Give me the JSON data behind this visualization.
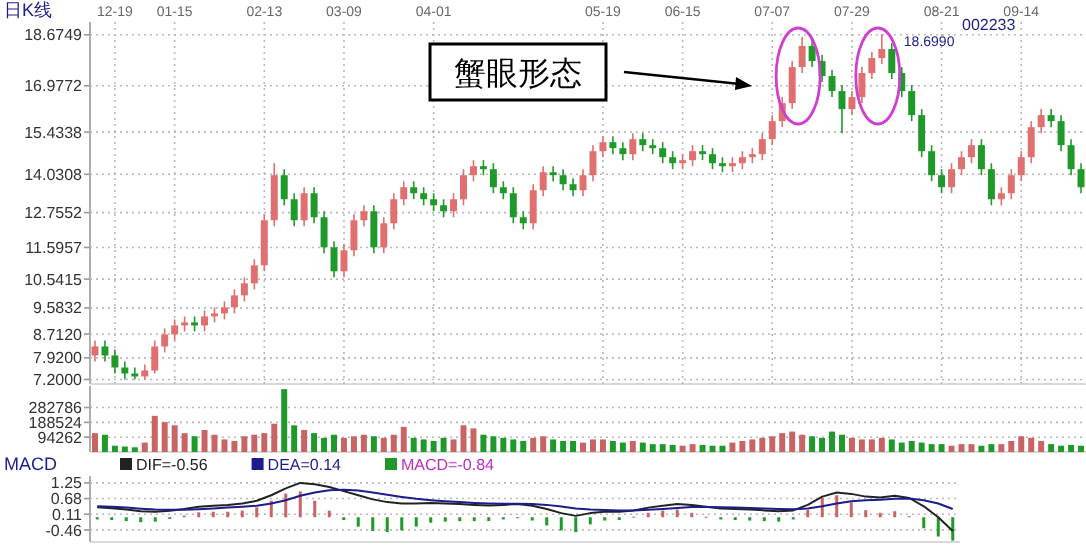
{
  "chart_data": [
    {
      "type": "candlestick",
      "title": "日K线",
      "subtitle": "002233",
      "annotations": [
        "蟹眼形态",
        "18.6990"
      ],
      "grid": true,
      "categories": [
        null,
        null,
        "12-19",
        null,
        null,
        null,
        null,
        null,
        "01-15",
        null,
        null,
        null,
        null,
        null,
        null,
        null,
        null,
        "02-13",
        null,
        null,
        null,
        null,
        null,
        null,
        null,
        "03-09",
        null,
        null,
        null,
        null,
        null,
        null,
        null,
        null,
        "04-01",
        null,
        null,
        null,
        null,
        null,
        null,
        null,
        null,
        null,
        null,
        null,
        null,
        null,
        null,
        null,
        null,
        "05-19",
        null,
        null,
        null,
        null,
        null,
        null,
        null,
        "06-15",
        null,
        null,
        null,
        null,
        null,
        null,
        null,
        null,
        "07-07",
        null,
        null,
        null,
        null,
        null,
        null,
        null,
        "07-29",
        null,
        null,
        null,
        null,
        null,
        null,
        null,
        null,
        "08-21",
        null,
        null,
        null,
        null,
        null,
        null,
        null,
        "09-14",
        null,
        null,
        null,
        null,
        null,
        null
      ],
      "ylim": [
        7.05,
        19.1
      ],
      "yticks": [
        {
          "value": 7.2,
          "label": "7.2000"
        },
        {
          "value": 7.92,
          "label": "7.9200"
        },
        {
          "value": 8.712,
          "label": "8.7120"
        },
        9.5832,
        10.5415,
        11.5957,
        12.7552,
        14.0308,
        15.4338,
        16.9772,
        18.6749
      ],
      "ohlc": [
        [
          8.0,
          8.5,
          7.8,
          8.3
        ],
        [
          8.3,
          8.5,
          7.8,
          8.0
        ],
        [
          8.0,
          8.2,
          7.4,
          7.6
        ],
        [
          7.6,
          7.8,
          7.2,
          7.4
        ],
        [
          7.4,
          7.6,
          7.2,
          7.3
        ],
        [
          7.3,
          7.7,
          7.2,
          7.5
        ],
        [
          7.5,
          8.5,
          7.4,
          8.3
        ],
        [
          8.3,
          8.9,
          8.1,
          8.7
        ],
        [
          8.7,
          9.2,
          8.5,
          9.0
        ],
        [
          9.0,
          9.3,
          8.8,
          9.1
        ],
        [
          9.1,
          9.3,
          8.8,
          9.0
        ],
        [
          9.0,
          9.5,
          8.8,
          9.3
        ],
        [
          9.3,
          9.6,
          9.1,
          9.4
        ],
        [
          9.4,
          9.8,
          9.2,
          9.6
        ],
        [
          9.6,
          10.2,
          9.4,
          10.0
        ],
        [
          10.0,
          10.6,
          9.8,
          10.4
        ],
        [
          10.4,
          11.2,
          10.2,
          11.0
        ],
        [
          11.0,
          12.7,
          10.8,
          12.5
        ],
        [
          12.5,
          14.4,
          12.3,
          14.0
        ],
        [
          14.0,
          14.2,
          13.0,
          13.2
        ],
        [
          13.2,
          13.4,
          12.3,
          12.5
        ],
        [
          12.5,
          13.6,
          12.3,
          13.4
        ],
        [
          13.4,
          13.6,
          12.4,
          12.6
        ],
        [
          12.6,
          12.8,
          11.4,
          11.6
        ],
        [
          11.6,
          11.8,
          10.6,
          10.8
        ],
        [
          10.8,
          11.7,
          10.6,
          11.5
        ],
        [
          11.5,
          12.7,
          11.3,
          12.5
        ],
        [
          12.5,
          13.0,
          12.3,
          12.8
        ],
        [
          12.8,
          13.0,
          11.4,
          11.6
        ],
        [
          11.6,
          12.6,
          11.4,
          12.4
        ],
        [
          12.4,
          13.4,
          12.2,
          13.2
        ],
        [
          13.2,
          13.8,
          13.0,
          13.6
        ],
        [
          13.6,
          13.8,
          13.2,
          13.4
        ],
        [
          13.4,
          13.6,
          13.0,
          13.2
        ],
        [
          13.2,
          13.4,
          12.8,
          13.0
        ],
        [
          13.0,
          13.2,
          12.6,
          12.8
        ],
        [
          12.8,
          13.4,
          12.6,
          13.2
        ],
        [
          13.2,
          14.2,
          13.0,
          14.0
        ],
        [
          14.0,
          14.5,
          13.8,
          14.3
        ],
        [
          14.3,
          14.5,
          14.0,
          14.2
        ],
        [
          14.2,
          14.4,
          13.4,
          13.6
        ],
        [
          13.6,
          13.8,
          13.2,
          13.4
        ],
        [
          13.4,
          13.6,
          12.4,
          12.6
        ],
        [
          12.6,
          12.8,
          12.2,
          12.4
        ],
        [
          12.4,
          13.7,
          12.2,
          13.5
        ],
        [
          13.5,
          14.3,
          13.3,
          14.1
        ],
        [
          14.1,
          14.3,
          13.8,
          14.0
        ],
        [
          14.0,
          14.2,
          13.5,
          13.7
        ],
        [
          13.7,
          13.9,
          13.3,
          13.5
        ],
        [
          13.5,
          14.2,
          13.3,
          14.0
        ],
        [
          14.0,
          15.0,
          13.8,
          14.8
        ],
        [
          14.8,
          15.3,
          14.6,
          15.1
        ],
        [
          15.1,
          15.3,
          14.7,
          14.9
        ],
        [
          14.9,
          15.1,
          14.5,
          14.7
        ],
        [
          14.7,
          15.4,
          14.5,
          15.2
        ],
        [
          15.2,
          15.4,
          14.8,
          15.0
        ],
        [
          15.0,
          15.2,
          14.7,
          14.9
        ],
        [
          14.9,
          15.1,
          14.4,
          14.6
        ],
        [
          14.6,
          14.8,
          14.2,
          14.4
        ],
        [
          14.4,
          14.7,
          14.2,
          14.5
        ],
        [
          14.5,
          15.0,
          14.3,
          14.8
        ],
        [
          14.8,
          15.0,
          14.5,
          14.7
        ],
        [
          14.7,
          14.9,
          14.2,
          14.4
        ],
        [
          14.4,
          14.6,
          14.1,
          14.3
        ],
        [
          14.3,
          14.6,
          14.1,
          14.4
        ],
        [
          14.4,
          14.8,
          14.2,
          14.6
        ],
        [
          14.6,
          14.9,
          14.4,
          14.7
        ],
        [
          14.7,
          15.4,
          14.5,
          15.2
        ],
        [
          15.2,
          16.0,
          15.0,
          15.8
        ],
        [
          15.8,
          16.6,
          15.6,
          16.4
        ],
        [
          16.4,
          17.8,
          16.2,
          17.6
        ],
        [
          17.6,
          18.6,
          17.4,
          18.3
        ],
        [
          18.3,
          18.5,
          17.6,
          17.8
        ],
        [
          17.8,
          18.0,
          17.1,
          17.3
        ],
        [
          17.3,
          17.5,
          16.6,
          16.8
        ],
        [
          16.8,
          17.0,
          15.4,
          16.2
        ],
        [
          16.2,
          16.8,
          16.0,
          16.6
        ],
        [
          16.6,
          17.6,
          16.4,
          17.4
        ],
        [
          17.4,
          18.1,
          17.2,
          17.9
        ],
        [
          17.9,
          18.699,
          17.7,
          18.2
        ],
        [
          18.2,
          18.4,
          17.2,
          17.4
        ],
        [
          17.4,
          17.6,
          16.6,
          16.8
        ],
        [
          16.8,
          17.0,
          15.8,
          16.0
        ],
        [
          16.0,
          16.2,
          14.6,
          14.8
        ],
        [
          14.8,
          15.0,
          13.8,
          14.0
        ],
        [
          14.0,
          14.2,
          13.4,
          13.6
        ],
        [
          13.6,
          14.4,
          13.4,
          14.2
        ],
        [
          14.2,
          14.8,
          14.0,
          14.6
        ],
        [
          14.6,
          15.2,
          14.4,
          15.0
        ],
        [
          15.0,
          15.2,
          14.0,
          14.2
        ],
        [
          14.2,
          14.4,
          13.0,
          13.2
        ],
        [
          13.2,
          13.6,
          13.0,
          13.4
        ],
        [
          13.4,
          14.2,
          13.2,
          14.0
        ],
        [
          14.0,
          14.8,
          13.8,
          14.6
        ],
        [
          14.6,
          15.8,
          14.4,
          15.6
        ],
        [
          15.6,
          16.2,
          15.4,
          16.0
        ],
        [
          16.0,
          16.2,
          15.6,
          15.8
        ],
        [
          15.8,
          16.0,
          14.8,
          15.0
        ],
        [
          15.0,
          15.2,
          14.0,
          14.2
        ],
        [
          14.2,
          14.4,
          13.4,
          13.6
        ]
      ]
    },
    {
      "type": "bar",
      "grid": "y",
      "ylim": [
        0,
        420000
      ],
      "yticks": [
        94262,
        188524,
        282786
      ],
      "categories": [
        null,
        null,
        null,
        null,
        null,
        null,
        null,
        null,
        null,
        null,
        null,
        null,
        null,
        null,
        null,
        null,
        null,
        null,
        null,
        null,
        null,
        null,
        null,
        null,
        null,
        null,
        null,
        null,
        null,
        null,
        null,
        null,
        null,
        null,
        null,
        null,
        null,
        null,
        null,
        null,
        null,
        null,
        null,
        null,
        null,
        null,
        null,
        null,
        null,
        null,
        null,
        null,
        null,
        null,
        null,
        null,
        null,
        null,
        null,
        null,
        null,
        null,
        null,
        null,
        null,
        null,
        null,
        null,
        null,
        null,
        null,
        null,
        null,
        null,
        null,
        null,
        null,
        null,
        null,
        null,
        null,
        null,
        null,
        null,
        null,
        null,
        null,
        null,
        null,
        null,
        null,
        null,
        null,
        null,
        null,
        null,
        null,
        null,
        null,
        null
      ],
      "values": [
        120000,
        110000,
        40000,
        35000,
        30000,
        60000,
        230000,
        190000,
        170000,
        120000,
        100000,
        140000,
        110000,
        80000,
        70000,
        100000,
        110000,
        120000,
        180000,
        400000,
        170000,
        140000,
        120000,
        90000,
        110000,
        90000,
        100000,
        110000,
        100000,
        90000,
        110000,
        160000,
        90000,
        80000,
        70000,
        90000,
        80000,
        170000,
        150000,
        110000,
        100000,
        90000,
        80000,
        70000,
        90000,
        100000,
        80000,
        70000,
        70000,
        60000,
        80000,
        80000,
        70000,
        60000,
        70000,
        60000,
        50000,
        50000,
        45000,
        40000,
        50000,
        45000,
        40000,
        40000,
        60000,
        70000,
        80000,
        90000,
        100000,
        120000,
        130000,
        110000,
        100000,
        90000,
        130000,
        110000,
        90000,
        80000,
        80000,
        90000,
        80000,
        60000,
        70000,
        60000,
        50000,
        50000,
        40000,
        50000,
        50000,
        40000,
        50000,
        50000,
        70000,
        100000,
        90000,
        70000,
        50000,
        40000,
        45000,
        40000
      ],
      "colors": [
        "#c86464",
        "#1f9a2a",
        "#1f9a2a",
        "#1f9a2a",
        "#1f9a2a",
        "#c86464",
        "#c86464",
        "#c86464",
        "#c86464",
        "#c86464",
        "#1f9a2a",
        "#c86464",
        "#c86464",
        "#c86464",
        "#c86464",
        "#c86464",
        "#c86464",
        "#c86464",
        "#c86464",
        "#1f9a2a",
        "#1f9a2a",
        "#c86464",
        "#1f9a2a",
        "#1f9a2a",
        "#1f9a2a",
        "#c86464",
        "#c86464",
        "#c86464",
        "#1f9a2a",
        "#c86464",
        "#c86464",
        "#c86464",
        "#1f9a2a",
        "#1f9a2a",
        "#1f9a2a",
        "#1f9a2a",
        "#c86464",
        "#c86464",
        "#c86464",
        "#1f9a2a",
        "#1f9a2a",
        "#1f9a2a",
        "#1f9a2a",
        "#1f9a2a",
        "#c86464",
        "#c86464",
        "#1f9a2a",
        "#1f9a2a",
        "#1f9a2a",
        "#c86464",
        "#c86464",
        "#c86464",
        "#1f9a2a",
        "#1f9a2a",
        "#c86464",
        "#1f9a2a",
        "#1f9a2a",
        "#1f9a2a",
        "#1f9a2a",
        "#c86464",
        "#c86464",
        "#1f9a2a",
        "#1f9a2a",
        "#1f9a2a",
        "#c86464",
        "#c86464",
        "#c86464",
        "#c86464",
        "#c86464",
        "#c86464",
        "#c86464",
        "#c86464",
        "#1f9a2a",
        "#1f9a2a",
        "#1f9a2a",
        "#1f9a2a",
        "#c86464",
        "#c86464",
        "#c86464",
        "#c86464",
        "#1f9a2a",
        "#1f9a2a",
        "#1f9a2a",
        "#1f9a2a",
        "#1f9a2a",
        "#1f9a2a",
        "#c86464",
        "#c86464",
        "#c86464",
        "#1f9a2a",
        "#1f9a2a",
        "#c86464",
        "#c86464",
        "#c86464",
        "#c86464",
        "#c86464",
        "#1f9a2a",
        "#1f9a2a",
        "#1f9a2a",
        "#1f9a2a"
      ]
    },
    {
      "type": "line",
      "title": "MACD",
      "grid": "y",
      "legend": "top",
      "ylim": [
        -0.9,
        1.5
      ],
      "yticks": [
        1.25,
        0.68,
        0.11,
        -0.46
      ],
      "categories": [
        null,
        null,
        null,
        null,
        null,
        null,
        null,
        null,
        null,
        null,
        null,
        null,
        null,
        null,
        null,
        null,
        null,
        null,
        null,
        null,
        null,
        null,
        null,
        null,
        null,
        null,
        null,
        null,
        null,
        null,
        null,
        null,
        null,
        null,
        null,
        null,
        null,
        null,
        null,
        null,
        null,
        null,
        null,
        null,
        null,
        null,
        null,
        null,
        null,
        null,
        null,
        null,
        null,
        null,
        null,
        null,
        null,
        null,
        null,
        null
      ],
      "series": [
        {
          "name": "DIF=-0.56",
          "color": "#222222",
          "values": [
            0.36,
            0.33,
            0.28,
            0.22,
            0.2,
            0.24,
            0.3,
            0.38,
            0.42,
            0.45,
            0.5,
            0.6,
            0.8,
            1.05,
            1.25,
            1.2,
            1.1,
            0.95,
            0.8,
            0.65,
            0.55,
            0.5,
            0.5,
            0.52,
            0.5,
            0.48,
            0.45,
            0.43,
            0.45,
            0.48,
            0.42,
            0.3,
            0.15,
            0.05,
            0.15,
            0.2,
            0.2,
            0.25,
            0.35,
            0.42,
            0.48,
            0.45,
            0.38,
            0.32,
            0.3,
            0.28,
            0.25,
            0.22,
            0.25,
            0.45,
            0.75,
            0.9,
            0.85,
            0.75,
            0.72,
            0.78,
            0.7,
            0.4,
            0.0,
            -0.5
          ]
        },
        {
          "name": "DEA=0.14",
          "color": "#1c1c8c",
          "values": [
            0.4,
            0.38,
            0.35,
            0.31,
            0.28,
            0.27,
            0.27,
            0.29,
            0.32,
            0.35,
            0.38,
            0.42,
            0.5,
            0.62,
            0.78,
            0.9,
            0.98,
            1.0,
            0.97,
            0.9,
            0.82,
            0.74,
            0.67,
            0.62,
            0.58,
            0.55,
            0.52,
            0.5,
            0.49,
            0.49,
            0.48,
            0.45,
            0.39,
            0.32,
            0.28,
            0.26,
            0.25,
            0.25,
            0.27,
            0.3,
            0.34,
            0.37,
            0.37,
            0.36,
            0.35,
            0.34,
            0.32,
            0.3,
            0.29,
            0.32,
            0.4,
            0.5,
            0.58,
            0.62,
            0.64,
            0.67,
            0.68,
            0.62,
            0.5,
            0.3
          ]
        },
        {
          "name": "MACD=-0.84",
          "type": "bar",
          "color": "#c02cc0",
          "values": [
            -0.08,
            -0.1,
            -0.14,
            -0.18,
            -0.16,
            -0.06,
            0.06,
            0.18,
            0.2,
            0.2,
            0.24,
            0.36,
            0.6,
            0.86,
            0.94,
            0.6,
            0.24,
            -0.1,
            -0.34,
            -0.5,
            -0.54,
            -0.48,
            -0.34,
            -0.2,
            -0.16,
            -0.14,
            -0.14,
            -0.14,
            -0.08,
            -0.02,
            -0.12,
            -0.3,
            -0.48,
            -0.54,
            -0.26,
            -0.12,
            -0.1,
            0.02,
            0.16,
            0.24,
            0.28,
            0.16,
            0.02,
            -0.08,
            -0.1,
            -0.12,
            -0.14,
            -0.16,
            -0.08,
            0.26,
            0.7,
            0.8,
            0.54,
            0.26,
            0.16,
            0.22,
            0.04,
            -0.4,
            -0.7,
            -0.85
          ],
          "colors": [
            "#1f9a2a",
            "#1f9a2a",
            "#1f9a2a",
            "#1f9a2a",
            "#1f9a2a",
            "#1f9a2a",
            "#c86464",
            "#c86464",
            "#c86464",
            "#c86464",
            "#c86464",
            "#c86464",
            "#c86464",
            "#c86464",
            "#c86464",
            "#c86464",
            "#c86464",
            "#1f9a2a",
            "#1f9a2a",
            "#1f9a2a",
            "#1f9a2a",
            "#1f9a2a",
            "#1f9a2a",
            "#1f9a2a",
            "#1f9a2a",
            "#1f9a2a",
            "#1f9a2a",
            "#1f9a2a",
            "#1f9a2a",
            "#1f9a2a",
            "#1f9a2a",
            "#1f9a2a",
            "#1f9a2a",
            "#1f9a2a",
            "#1f9a2a",
            "#1f9a2a",
            "#1f9a2a",
            "#c86464",
            "#c86464",
            "#c86464",
            "#c86464",
            "#c86464",
            "#c86464",
            "#1f9a2a",
            "#1f9a2a",
            "#1f9a2a",
            "#1f9a2a",
            "#1f9a2a",
            "#1f9a2a",
            "#c86464",
            "#c86464",
            "#c86464",
            "#c86464",
            "#c86464",
            "#c86464",
            "#c86464",
            "#c86464",
            "#1f9a2a",
            "#1f9a2a",
            "#1f9a2a"
          ]
        }
      ]
    }
  ]
}
